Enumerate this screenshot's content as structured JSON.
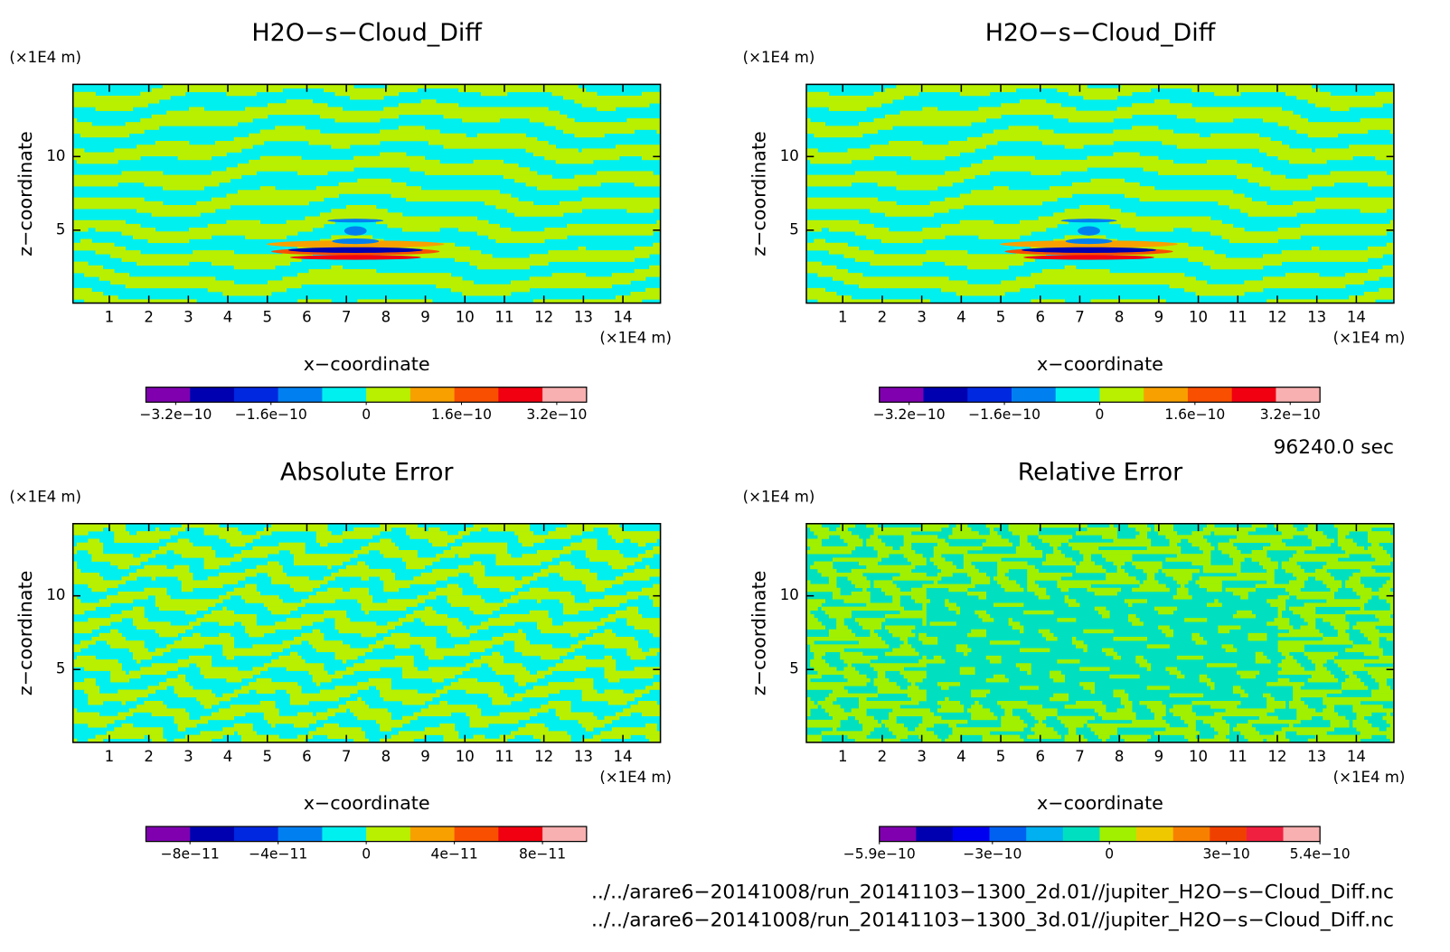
{
  "chart_data": [
    {
      "type": "contour",
      "title": "H2O−s−Cloud_Diff",
      "xlabel": "x−coordinate",
      "ylabel": "z−coordinate",
      "xunit": "(×1E4 m)",
      "yunit": "(×1E4 m)",
      "xlim": [
        0.08,
        14.95
      ],
      "ylim": [
        0.05,
        14.9
      ],
      "xticks": [
        1,
        2,
        3,
        4,
        5,
        6,
        7,
        8,
        9,
        10,
        11,
        12,
        13,
        14
      ],
      "yticks": [
        5,
        10
      ],
      "colorbar": {
        "colors": [
          "#8000b0",
          "#0000b0",
          "#0028e0",
          "#0080f0",
          "#00f0f0",
          "#b8f000",
          "#f8a000",
          "#f85000",
          "#f00010",
          "#f8b0b0"
        ],
        "lim": [
          -3.7e-10,
          3.7e-10
        ],
        "ticks": [
          {
            "value": -3.2e-10,
            "label": "−3.2e−10"
          },
          {
            "value": -1.6e-10,
            "label": "−1.6e−10"
          },
          0,
          {
            "value": 1.6e-10,
            "label": "1.6e−10"
          },
          {
            "value": 3.2e-10,
            "label": "3.2e−10"
          }
        ]
      }
    },
    {
      "type": "contour",
      "title": "H2O−s−Cloud_Diff",
      "xlabel": "x−coordinate",
      "ylabel": "z−coordinate",
      "xunit": "(×1E4 m)",
      "yunit": "(×1E4 m)",
      "xlim": [
        0.08,
        14.95
      ],
      "ylim": [
        0.05,
        14.9
      ],
      "xticks": [
        1,
        2,
        3,
        4,
        5,
        6,
        7,
        8,
        9,
        10,
        11,
        12,
        13,
        14
      ],
      "yticks": [
        5,
        10
      ],
      "colorbar": {
        "colors": [
          "#8000b0",
          "#0000b0",
          "#0028e0",
          "#0080f0",
          "#00f0f0",
          "#b8f000",
          "#f8a000",
          "#f85000",
          "#f00010",
          "#f8b0b0"
        ],
        "lim": [
          -3.7e-10,
          3.7e-10
        ],
        "ticks": [
          {
            "value": -3.2e-10,
            "label": "−3.2e−10"
          },
          {
            "value": -1.6e-10,
            "label": "−1.6e−10"
          },
          0,
          {
            "value": 1.6e-10,
            "label": "1.6e−10"
          },
          {
            "value": 3.2e-10,
            "label": "3.2e−10"
          }
        ]
      }
    },
    {
      "type": "contour",
      "title": "Absolute Error",
      "xlabel": "x−coordinate",
      "ylabel": "z−coordinate",
      "xunit": "(×1E4 m)",
      "yunit": "(×1E4 m)",
      "xlim": [
        0.08,
        14.95
      ],
      "ylim": [
        0.05,
        14.9
      ],
      "xticks": [
        1,
        2,
        3,
        4,
        5,
        6,
        7,
        8,
        9,
        10,
        11,
        12,
        13,
        14
      ],
      "yticks": [
        5,
        10
      ],
      "colorbar": {
        "colors": [
          "#8000b0",
          "#0000b0",
          "#0028e0",
          "#0080f0",
          "#00f0f0",
          "#b8f000",
          "#f8a000",
          "#f85000",
          "#f00010",
          "#f8b0b0"
        ],
        "lim": [
          -1e-10,
          1e-10
        ],
        "ticks": [
          {
            "value": -8e-11,
            "label": "−8e−11"
          },
          {
            "value": -4e-11,
            "label": "−4e−11"
          },
          0,
          {
            "value": 4e-11,
            "label": "4e−11"
          },
          {
            "value": 8e-11,
            "label": "8e−11"
          }
        ]
      }
    },
    {
      "type": "contour",
      "title": "Relative Error",
      "xlabel": "x−coordinate",
      "ylabel": "z−coordinate",
      "xunit": "(×1E4 m)",
      "yunit": "(×1E4 m)",
      "xlim": [
        0.08,
        14.95
      ],
      "ylim": [
        0.05,
        14.9
      ],
      "xticks": [
        1,
        2,
        3,
        4,
        5,
        6,
        7,
        8,
        9,
        10,
        11,
        12,
        13,
        14
      ],
      "yticks": [
        5,
        10
      ],
      "colorbar": {
        "colors": [
          "#8000b0",
          "#0000b0",
          "#0000f0",
          "#0060f0",
          "#00b0f0",
          "#00e0c0",
          "#a0f000",
          "#f0c800",
          "#f88000",
          "#f04000",
          "#f02040",
          "#f8b0b0"
        ],
        "lim": [
          -5.9e-10,
          5.4e-10
        ],
        "ticks": [
          {
            "value": -5.9e-10,
            "label": "−5.9e−10"
          },
          {
            "value": -3e-10,
            "label": "−3e−10"
          },
          0,
          {
            "value": 3e-10,
            "label": "3e−10"
          },
          {
            "value": 5.4e-10,
            "label": "5.4e−10"
          }
        ]
      }
    }
  ],
  "annotations": {
    "time": "96240.0 sec",
    "files": [
      "../../arare6−20141008/run_20141103−1300_2d.01//jupiter_H2O−s−Cloud_Diff.nc",
      "../../arare6−20141008/run_20141103−1300_3d.01//jupiter_H2O−s−Cloud_Diff.nc"
    ]
  }
}
